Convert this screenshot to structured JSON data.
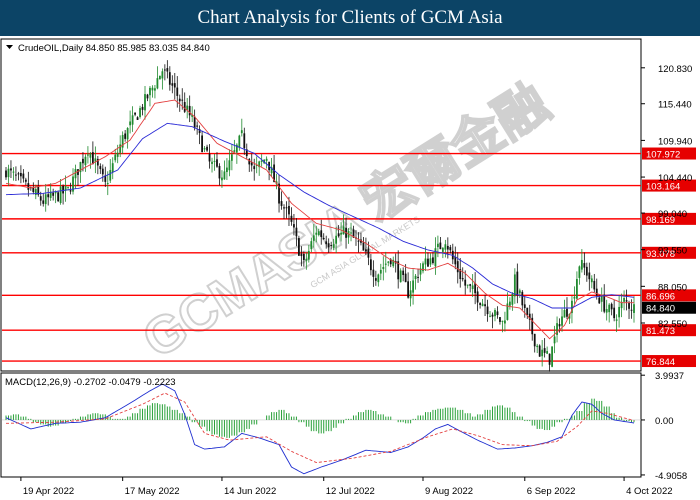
{
  "title": "Chart Analysis for Clients of GCM Asia",
  "watermark": "GCMASIA 宏爾金融",
  "watermark_sub": "GCM ASIA GLOBAL MARKETS",
  "colors": {
    "title_bg": "#0c4466",
    "up": "#1f8a2e",
    "down": "#111111",
    "ma_fast": "#e34040",
    "ma_slow": "#2b2bd6",
    "level_line": "#ff0000",
    "level_tag": "#e60000",
    "current_tag": "#000000",
    "macd_line": "#1f2fd0",
    "signal_line": "#e34040",
    "hist": "#2aa13a"
  },
  "chart_data": [
    {
      "type": "candlestick",
      "header": "CrudeOIL,Daily  84.850 85.985 83.035 84.840",
      "y_ticks": [
        "120.830",
        "115.440",
        "109.940",
        "104.440",
        "99.040",
        "93.550",
        "88.050",
        "82.550"
      ],
      "ylim": [
        75.5,
        125.0
      ],
      "x_ticks": [
        "19 Apr 2022",
        "17 May 2022",
        "14 Jun 2022",
        "12 Jul 2022",
        "9 Aug 2022",
        "6 Sep 2022",
        "4 Oct 2022"
      ],
      "levels": [
        "107.972",
        "103.164",
        "98.169",
        "93.078",
        "86.696",
        "81.473",
        "76.844"
      ],
      "current": "84.840",
      "close_path": [
        [
          0,
          105.5
        ],
        [
          8,
          103
        ],
        [
          15,
          100.8
        ],
        [
          25,
          102.4
        ],
        [
          33,
          108.8
        ],
        [
          40,
          103.2
        ],
        [
          47,
          110.2
        ],
        [
          56,
          115.8
        ],
        [
          63,
          120.5
        ],
        [
          67,
          118
        ],
        [
          75,
          113
        ],
        [
          82,
          106.5
        ],
        [
          88,
          104.6
        ],
        [
          95,
          110.5
        ],
        [
          100,
          105.2
        ],
        [
          105,
          107.5
        ],
        [
          110,
          101.5
        ],
        [
          115,
          97.3
        ],
        [
          120,
          91.2
        ],
        [
          125,
          96.5
        ],
        [
          130,
          94.8
        ],
        [
          137,
          96.2
        ],
        [
          142,
          94.5
        ],
        [
          149,
          89.8
        ],
        [
          155,
          92.4
        ],
        [
          162,
          87.2
        ],
        [
          167,
          90.8
        ],
        [
          172,
          92.5
        ],
        [
          177,
          95.2
        ],
        [
          180,
          92
        ],
        [
          185,
          88.2
        ],
        [
          190,
          86.6
        ],
        [
          196,
          84
        ],
        [
          200,
          82.6
        ],
        [
          205,
          88.8
        ],
        [
          210,
          83
        ],
        [
          215,
          78.2
        ],
        [
          219,
          77.2
        ],
        [
          223,
          83
        ],
        [
          228,
          85.5
        ],
        [
          231,
          91.5
        ],
        [
          234,
          90.2
        ],
        [
          237,
          87.5
        ],
        [
          241,
          85.2
        ],
        [
          245,
          83.4
        ],
        [
          249,
          85.8
        ],
        [
          253,
          84.84
        ]
      ],
      "ma_fast": [
        [
          0,
          103.5
        ],
        [
          10,
          102.8
        ],
        [
          20,
          103.5
        ],
        [
          30,
          105.5
        ],
        [
          40,
          107.5
        ],
        [
          50,
          110
        ],
        [
          60,
          115.5
        ],
        [
          68,
          116
        ],
        [
          76,
          113.5
        ],
        [
          85,
          109.5
        ],
        [
          95,
          107.5
        ],
        [
          105,
          105.5
        ],
        [
          115,
          100.5
        ],
        [
          125,
          97.5
        ],
        [
          135,
          96.5
        ],
        [
          145,
          94.5
        ],
        [
          155,
          92
        ],
        [
          162,
          90.8
        ],
        [
          170,
          90.5
        ],
        [
          178,
          91.5
        ],
        [
          185,
          90
        ],
        [
          193,
          87
        ],
        [
          200,
          85.2
        ],
        [
          207,
          84.8
        ],
        [
          213,
          82.5
        ],
        [
          219,
          80.2
        ],
        [
          225,
          82.2
        ],
        [
          230,
          86
        ],
        [
          236,
          87.2
        ],
        [
          242,
          86.5
        ],
        [
          248,
          85.6
        ],
        [
          253,
          85.6
        ]
      ],
      "ma_slow": [
        [
          0,
          101.8
        ],
        [
          15,
          102
        ],
        [
          30,
          102.8
        ],
        [
          45,
          105.5
        ],
        [
          55,
          110.2
        ],
        [
          65,
          112.5
        ],
        [
          75,
          112
        ],
        [
          88,
          109.8
        ],
        [
          100,
          108
        ],
        [
          110,
          104.8
        ],
        [
          120,
          102.2
        ],
        [
          130,
          100.2
        ],
        [
          140,
          98.5
        ],
        [
          150,
          96.8
        ],
        [
          160,
          94.8
        ],
        [
          170,
          93.5
        ],
        [
          180,
          92.7
        ],
        [
          188,
          90.8
        ],
        [
          196,
          88.4
        ],
        [
          204,
          87
        ],
        [
          212,
          86.2
        ],
        [
          220,
          84.8
        ],
        [
          228,
          84.8
        ],
        [
          236,
          86.4
        ],
        [
          244,
          86.8
        ],
        [
          253,
          86.4
        ]
      ]
    },
    {
      "type": "macd",
      "label": "MACD(12,26,9) -0.2702 -0.0479 -0.2223",
      "y_ticks": [
        "3.9937",
        "0.00",
        "-4.9058"
      ],
      "ylim": [
        -5.0,
        4.1
      ],
      "macd": [
        [
          0,
          0.2
        ],
        [
          10,
          -0.8
        ],
        [
          20,
          -0.3
        ],
        [
          30,
          -0.2
        ],
        [
          40,
          0.2
        ],
        [
          50,
          1.5
        ],
        [
          58,
          2.6
        ],
        [
          63,
          3.2
        ],
        [
          68,
          2.6
        ],
        [
          72,
          0.5
        ],
        [
          76,
          -2.2
        ],
        [
          80,
          -2.6
        ],
        [
          88,
          -2.4
        ],
        [
          95,
          -1.2
        ],
        [
          102,
          -1.6
        ],
        [
          110,
          -2.2
        ],
        [
          115,
          -4.2
        ],
        [
          120,
          -4.8
        ],
        [
          127,
          -4.2
        ],
        [
          135,
          -3.6
        ],
        [
          145,
          -2.7
        ],
        [
          155,
          -2.9
        ],
        [
          162,
          -2.4
        ],
        [
          168,
          -1.6
        ],
        [
          173,
          -0.8
        ],
        [
          178,
          -0.4
        ],
        [
          183,
          -1.0
        ],
        [
          190,
          -1.8
        ],
        [
          198,
          -2.6
        ],
        [
          205,
          -2.5
        ],
        [
          212,
          -2.3
        ],
        [
          218,
          -2.0
        ],
        [
          224,
          -1.5
        ],
        [
          228,
          0.4
        ],
        [
          232,
          1.6
        ],
        [
          236,
          1.4
        ],
        [
          240,
          0.6
        ],
        [
          245,
          0.0
        ],
        [
          253,
          -0.27
        ]
      ],
      "signal": [
        [
          0,
          -0.3
        ],
        [
          20,
          -0.2
        ],
        [
          40,
          0.1
        ],
        [
          55,
          1.4
        ],
        [
          64,
          2.4
        ],
        [
          72,
          1.6
        ],
        [
          80,
          -1.2
        ],
        [
          90,
          -1.8
        ],
        [
          105,
          -1.5
        ],
        [
          115,
          -2.8
        ],
        [
          125,
          -3.8
        ],
        [
          140,
          -3.4
        ],
        [
          155,
          -2.8
        ],
        [
          170,
          -1.5
        ],
        [
          180,
          -0.8
        ],
        [
          190,
          -1.4
        ],
        [
          200,
          -2.2
        ],
        [
          212,
          -2.3
        ],
        [
          222,
          -1.9
        ],
        [
          230,
          -0.6
        ],
        [
          236,
          0.8
        ],
        [
          242,
          0.6
        ],
        [
          253,
          -0.05
        ]
      ],
      "hist": [
        0.4,
        0.5,
        0.3,
        0.1,
        -0.2,
        -0.4,
        -0.6,
        -0.5,
        -0.3,
        -0.1,
        0.1,
        0.3,
        0.5,
        0.6,
        0.5,
        0.3,
        0.1,
        0.1,
        0.3,
        0.6,
        1.0,
        1.3,
        1.5,
        1.4,
        1.2,
        0.9,
        0.6,
        0.3,
        -0.2,
        -0.6,
        -1.0,
        -1.3,
        -1.5,
        -1.6,
        -1.4,
        -1.1,
        -0.8,
        -0.4,
        0.0,
        0.4,
        0.7,
        0.9,
        0.6,
        0.3,
        -0.2,
        -0.6,
        -1.0,
        -1.2,
        -1.0,
        -0.7,
        -0.3,
        0.1,
        0.4,
        0.7,
        0.9,
        0.8,
        0.5,
        0.3,
        0.0,
        -0.2,
        -0.3,
        0.1,
        0.4,
        0.7,
        0.9,
        1.0,
        1.1,
        1.1,
        0.9,
        0.6,
        0.3,
        0.5,
        0.9,
        1.2,
        1.3,
        1.1,
        0.7,
        0.3,
        -0.1,
        -0.5,
        -0.8,
        -0.9,
        -0.6,
        -0.2,
        0.1,
        0.4,
        0.8,
        1.5,
        1.9,
        1.7,
        1.2,
        0.6,
        0.2,
        -0.1,
        -0.2
      ]
    }
  ]
}
